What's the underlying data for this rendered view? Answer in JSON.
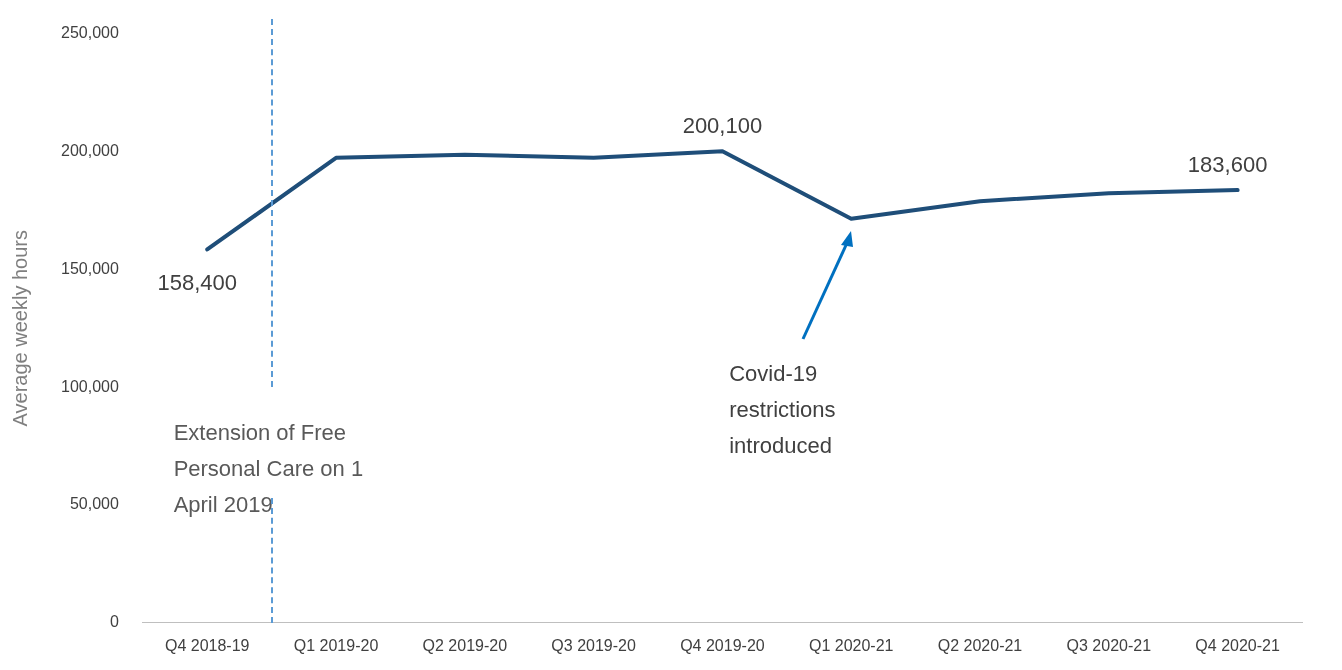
{
  "chart_data": {
    "type": "line",
    "ylabel": "Average weekly hours",
    "categories": [
      "Q4 2018-19",
      "Q1 2019-20",
      "Q2 2019-20",
      "Q3 2019-20",
      "Q4 2019-20",
      "Q1 2020-21",
      "Q2 2020-21",
      "Q3 2020-21",
      "Q4 2020-21"
    ],
    "series": [
      {
        "color": "#1f4e79",
        "values": [
          158400,
          197300,
          198600,
          197300,
          200100,
          171400,
          178900,
          182300,
          183600
        ],
        "value_labels": [
          "158,400",
          null,
          null,
          null,
          "200,100",
          null,
          null,
          null,
          "183,600"
        ]
      }
    ],
    "ylim": [
      0,
      250000
    ],
    "yticks": [
      {
        "value": 0,
        "label": "0"
      },
      {
        "value": 50000,
        "label": "50,000"
      },
      {
        "value": 100000,
        "label": "100,000"
      },
      {
        "value": 150000,
        "label": "150,000"
      },
      {
        "value": 200000,
        "label": "200,000"
      },
      {
        "value": 250000,
        "label": "250,000"
      }
    ],
    "annotations": [
      "Extension of Free Personal Care on 1 April 2019",
      "Covid-19 restrictions introduced"
    ],
    "grid": false,
    "legend": false,
    "marker": "none",
    "line_style": "solid"
  }
}
